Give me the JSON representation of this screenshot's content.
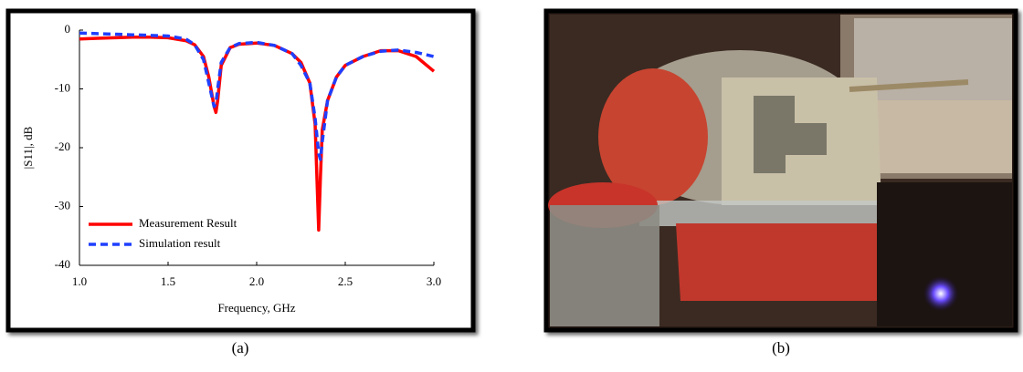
{
  "chart_data": {
    "type": "line",
    "xlabel": "Frequency, GHz",
    "ylabel": "|S11|, dB",
    "x": [
      1.0,
      1.1,
      1.2,
      1.3,
      1.4,
      1.5,
      1.6,
      1.65,
      1.7,
      1.73,
      1.76,
      1.77,
      1.78,
      1.8,
      1.85,
      1.9,
      2.0,
      2.1,
      2.2,
      2.25,
      2.3,
      2.33,
      2.35,
      2.36,
      2.37,
      2.4,
      2.45,
      2.5,
      2.6,
      2.7,
      2.8,
      2.9,
      3.0
    ],
    "series": [
      {
        "name": "Measurement Result",
        "color": "#ff0000",
        "dashed": false,
        "values": [
          -1.5,
          -1.4,
          -1.3,
          -1.2,
          -1.2,
          -1.3,
          -1.8,
          -2.5,
          -4.5,
          -8,
          -13,
          -14,
          -12,
          -6,
          -3,
          -2.4,
          -2.2,
          -2.6,
          -4,
          -5.5,
          -9,
          -16,
          -34,
          -25,
          -17,
          -12,
          -8,
          -6,
          -4.5,
          -3.5,
          -3.5,
          -4.5,
          -7
        ]
      },
      {
        "name": "Simulation result",
        "color": "#1f3fff",
        "dashed": true,
        "values": [
          -0.5,
          -0.6,
          -0.7,
          -0.8,
          -0.9,
          -1,
          -1.5,
          -2.5,
          -5,
          -9,
          -13,
          -12.5,
          -10,
          -5.5,
          -3,
          -2.3,
          -2.1,
          -2.6,
          -4,
          -6,
          -9,
          -15,
          -21,
          -22,
          -19,
          -12,
          -8,
          -6,
          -4.5,
          -3.6,
          -3.4,
          -3.8,
          -4.5
        ]
      }
    ],
    "xlim": [
      1.0,
      3.0
    ],
    "xticks": [
      {
        "value": 1.0,
        "label": "1.0"
      },
      1.5,
      {
        "value": 2.0,
        "label": "2.0"
      },
      2.5,
      {
        "value": 3.0,
        "label": "3.0"
      }
    ],
    "ylim": [
      -40,
      0
    ],
    "yticks": [
      0,
      -10,
      -20,
      -30,
      -40
    ],
    "legend": "lower left"
  },
  "captions": [
    "(a)",
    "(b)"
  ]
}
